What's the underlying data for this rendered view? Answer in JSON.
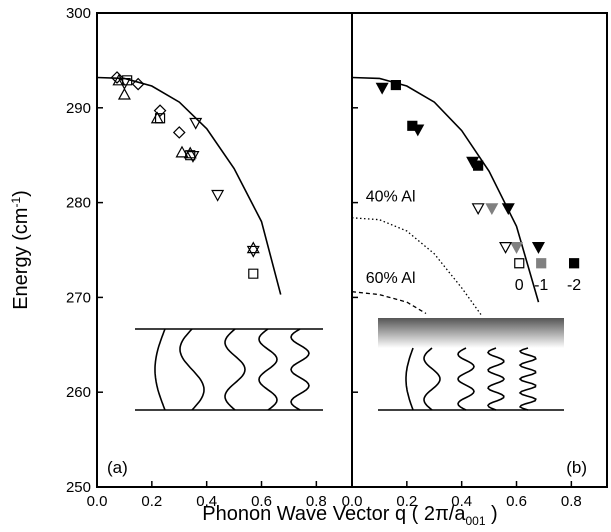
{
  "chart_data": [
    {
      "type": "line",
      "panel_label": "(a)",
      "ylabel": {
        "text": "Energy (cm",
        "sup": "-1",
        "end": ")"
      },
      "xlabel": {
        "text": "Phonon Wave Vector q  (  2π/a",
        "sub": "001",
        "end": " )"
      },
      "xlim": [
        0,
        0.93
      ],
      "ylim": [
        250,
        300
      ],
      "xticks": [
        {
          "value": 0,
          "label": "0.0"
        },
        {
          "value": 0.2,
          "label": "0.2"
        },
        {
          "value": 0.4,
          "label": "0.4"
        },
        {
          "value": 0.6,
          "label": "0.6"
        },
        {
          "value": 0.8,
          "label": "0.8"
        }
      ],
      "yticks": [
        250,
        260,
        270,
        280,
        290,
        300
      ],
      "ytick_labels": true,
      "series": [
        {
          "marker": "none",
          "color": "#000000",
          "dash": "solid",
          "x": [
            0,
            0.1,
            0.2,
            0.3,
            0.4,
            0.5,
            0.6,
            0.67
          ],
          "values": [
            293.2,
            293.1,
            292.3,
            290.6,
            287.8,
            283.6,
            278.0,
            270.3
          ]
        },
        {
          "marker": "diamond",
          "color": "#000000",
          "fill": "none",
          "x": [
            0.073,
            0.15,
            0.23,
            0.3
          ],
          "values": [
            293.2,
            292.5,
            289.7,
            287.4
          ]
        },
        {
          "marker": "triangle-up",
          "color": "#000000",
          "fill": "none",
          "x": [
            0.08,
            0.1,
            0.22,
            0.31,
            0.34,
            0.57
          ],
          "values": [
            292.9,
            291.4,
            288.9,
            285.3,
            285.2,
            275.2
          ]
        },
        {
          "marker": "triangle-down",
          "color": "#000000",
          "fill": "none",
          "x": [
            0.1,
            0.36,
            0.35,
            0.44,
            0.57
          ],
          "values": [
            292.6,
            288.4,
            284.9,
            280.8,
            274.9
          ]
        },
        {
          "marker": "square",
          "color": "#000000",
          "fill": "none",
          "x": [
            0.11,
            0.23,
            0.34,
            0.57
          ],
          "values": [
            292.9,
            288.9,
            285.0,
            272.5
          ]
        }
      ]
    },
    {
      "type": "line",
      "panel_label": "(b)",
      "xlim": [
        0,
        0.93
      ],
      "ylim": [
        250,
        300
      ],
      "xticks": [
        {
          "value": 0,
          "label": "0.0"
        },
        {
          "value": 0.2,
          "label": "0.2"
        },
        {
          "value": 0.4,
          "label": "0.4"
        },
        {
          "value": 0.6,
          "label": "0.6"
        },
        {
          "value": 0.8,
          "label": "0.8"
        }
      ],
      "yticks": [
        250,
        260,
        270,
        280,
        290,
        300
      ],
      "ytick_labels": false,
      "annotations": [
        "40% Al",
        "60% Al",
        "0",
        "-1",
        "-2"
      ],
      "series": [
        {
          "marker": "none",
          "color": "#000000",
          "dash": "solid",
          "x": [
            0,
            0.1,
            0.2,
            0.3,
            0.4,
            0.5,
            0.6,
            0.68
          ],
          "values": [
            293.2,
            293.1,
            292.3,
            290.6,
            287.6,
            283.3,
            277.5,
            269.5
          ]
        },
        {
          "marker": "none",
          "color": "#000000",
          "dash": "dotted",
          "x": [
            0,
            0.1,
            0.2,
            0.3,
            0.4,
            0.47
          ],
          "values": [
            278.4,
            278.2,
            277.0,
            274.6,
            271.0,
            268.2
          ]
        },
        {
          "marker": "none",
          "color": "#000000",
          "dash": "dashed",
          "x": [
            0,
            0.1,
            0.2,
            0.27
          ],
          "values": [
            270.6,
            270.3,
            269.5,
            268.3
          ]
        },
        {
          "marker": "triangle-down",
          "color": "#000000",
          "fill": "#000000",
          "x": [
            0.11,
            0.24,
            0.44,
            0.57,
            0.68
          ],
          "values": [
            292.1,
            287.7,
            284.3,
            279.4,
            275.3
          ]
        },
        {
          "marker": "square",
          "color": "#000000",
          "fill": "#000000",
          "x": [
            0.16,
            0.22,
            0.46,
            0.81
          ],
          "values": [
            292.4,
            288.1,
            283.9,
            273.6
          ]
        },
        {
          "marker": "triangle-down",
          "color": "#808080",
          "fill": "#808080",
          "x": [
            0.51,
            0.6
          ],
          "values": [
            279.4,
            275.3
          ]
        },
        {
          "marker": "square",
          "color": "#808080",
          "fill": "#808080",
          "x": [
            0.69
          ],
          "values": [
            273.6
          ]
        },
        {
          "marker": "triangle-down",
          "color": "#000000",
          "fill": "none",
          "x": [
            0.46,
            0.56
          ],
          "values": [
            279.4,
            275.3
          ]
        },
        {
          "marker": "square",
          "color": "#000000",
          "fill": "none",
          "x": [
            0.61
          ],
          "values": [
            273.6
          ]
        }
      ]
    }
  ]
}
